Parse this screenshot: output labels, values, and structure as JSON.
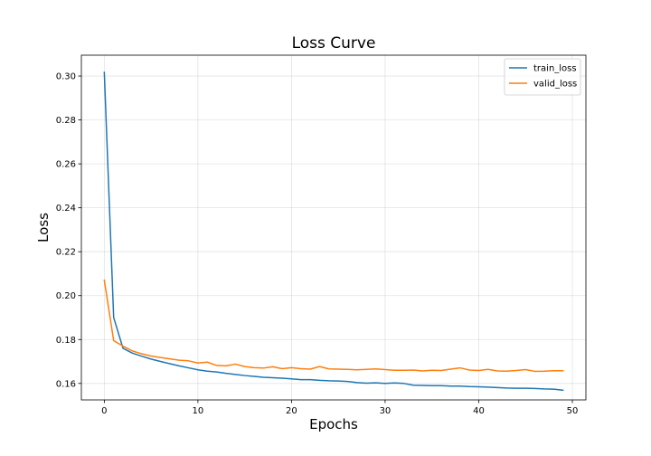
{
  "chart_data": {
    "type": "line",
    "title": "Loss Curve",
    "xlabel": "Epochs",
    "ylabel": "Loss",
    "xlim": [
      -2.45,
      51.45
    ],
    "ylim": [
      0.1525,
      0.3095
    ],
    "xticks": [
      0,
      10,
      20,
      30,
      40,
      50
    ],
    "yticks": [
      0.16,
      0.18,
      0.2,
      0.22,
      0.24,
      0.26,
      0.28,
      0.3
    ],
    "ytick_labels": [
      "0.16",
      "0.18",
      "0.20",
      "0.22",
      "0.24",
      "0.26",
      "0.28",
      "0.30"
    ],
    "grid": true,
    "legend_position": "top-right",
    "x": [
      0,
      1,
      2,
      3,
      4,
      5,
      6,
      7,
      8,
      9,
      10,
      11,
      12,
      13,
      14,
      15,
      16,
      17,
      18,
      19,
      20,
      21,
      22,
      23,
      24,
      25,
      26,
      27,
      28,
      29,
      30,
      31,
      32,
      33,
      34,
      35,
      36,
      37,
      38,
      39,
      40,
      41,
      42,
      43,
      44,
      45,
      46,
      47,
      48,
      49
    ],
    "series": [
      {
        "name": "train_loss",
        "color": "#1f77b4",
        "values": [
          0.3017,
          0.19,
          0.176,
          0.1738,
          0.1724,
          0.1711,
          0.17,
          0.169,
          0.168,
          0.1671,
          0.1662,
          0.1656,
          0.1652,
          0.1646,
          0.1641,
          0.1636,
          0.1632,
          0.1628,
          0.1626,
          0.1624,
          0.1621,
          0.1617,
          0.1617,
          0.1614,
          0.1612,
          0.1611,
          0.1609,
          0.1604,
          0.1601,
          0.1603,
          0.16,
          0.1602,
          0.16,
          0.1592,
          0.1591,
          0.159,
          0.159,
          0.1588,
          0.1588,
          0.1586,
          0.1585,
          0.1583,
          0.1581,
          0.1579,
          0.1578,
          0.1578,
          0.1577,
          0.1575,
          0.1574,
          0.1569
        ]
      },
      {
        "name": "valid_loss",
        "color": "#ff7f0e",
        "values": [
          0.207,
          0.1795,
          0.177,
          0.1748,
          0.1735,
          0.1725,
          0.1718,
          0.1712,
          0.1706,
          0.1703,
          0.1693,
          0.1697,
          0.1682,
          0.168,
          0.1688,
          0.1677,
          0.1672,
          0.167,
          0.1676,
          0.1667,
          0.1672,
          0.1667,
          0.1665,
          0.1677,
          0.1666,
          0.1665,
          0.1664,
          0.1662,
          0.1664,
          0.1666,
          0.1663,
          0.166,
          0.166,
          0.1661,
          0.1657,
          0.166,
          0.1659,
          0.1665,
          0.1671,
          0.1661,
          0.1659,
          0.1664,
          0.1657,
          0.1656,
          0.1659,
          0.1663,
          0.1655,
          0.1656,
          0.1658,
          0.1658
        ]
      }
    ]
  }
}
